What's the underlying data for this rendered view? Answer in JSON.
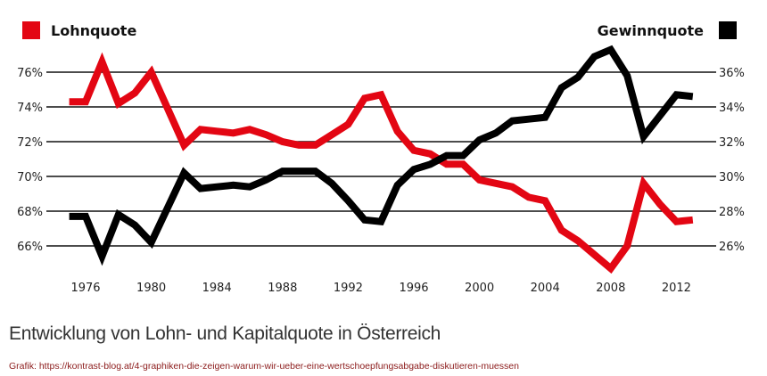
{
  "legend": {
    "left": {
      "label": "Lohnquote",
      "color": "#e30613"
    },
    "right": {
      "label": "Gewinnquote",
      "color": "#000000"
    }
  },
  "caption": "Entwicklung von Lohn- und Kapitalquote in Österreich",
  "credit": "Grafik: https://kontrast-blog.at/4-graphiken-die-zeigen-warum-wir-ueber-eine-wertschoepfungsabgabe-diskutieren-muessen",
  "chart_data": {
    "type": "line",
    "title": "Entwicklung von Lohn- und Kapitalquote in Österreich",
    "xlabel": "",
    "ylabel_left": "Lohnquote",
    "ylabel_right": "Gewinnquote",
    "x": [
      1975,
      1976,
      1977,
      1978,
      1979,
      1980,
      1981,
      1982,
      1983,
      1984,
      1985,
      1986,
      1987,
      1988,
      1989,
      1990,
      1991,
      1992,
      1993,
      1994,
      1995,
      1996,
      1997,
      1998,
      1999,
      2000,
      2001,
      2002,
      2003,
      2004,
      2005,
      2006,
      2007,
      2008,
      2009,
      2010,
      2011,
      2012,
      2013
    ],
    "x_ticks": [
      1976,
      1980,
      1984,
      1988,
      1992,
      1996,
      2000,
      2004,
      2008,
      2012
    ],
    "y_left_ticks": [
      "76%",
      "74%",
      "72%",
      "70%",
      "68%",
      "66%"
    ],
    "y_right_ticks": [
      "36%",
      "34%",
      "32%",
      "30%",
      "28%",
      "26%"
    ],
    "ylim_left": [
      64,
      77.5
    ],
    "ylim_right": [
      24,
      37.5
    ],
    "grid": true,
    "legend_position": "top",
    "series": [
      {
        "name": "Lohnquote",
        "axis": "left",
        "color": "#e30613",
        "values": [
          74.3,
          74.3,
          76.6,
          74.2,
          74.8,
          76.0,
          73.9,
          71.8,
          72.7,
          72.6,
          72.5,
          72.7,
          72.4,
          72.0,
          71.8,
          71.8,
          72.4,
          73.0,
          74.5,
          74.7,
          72.6,
          71.5,
          71.3,
          70.7,
          70.7,
          69.8,
          69.6,
          69.4,
          68.8,
          68.6,
          66.9,
          66.3,
          65.5,
          64.7,
          66.0,
          69.6,
          68.4,
          67.4,
          67.5
        ]
      },
      {
        "name": "Gewinnquote",
        "axis": "right",
        "color": "#000000",
        "values": [
          27.7,
          27.7,
          25.4,
          27.8,
          27.2,
          26.2,
          28.2,
          30.2,
          29.3,
          29.4,
          29.5,
          29.4,
          29.8,
          30.3,
          30.3,
          30.3,
          29.6,
          28.6,
          27.5,
          27.4,
          29.5,
          30.4,
          30.7,
          31.2,
          31.2,
          32.1,
          32.5,
          33.2,
          33.3,
          33.4,
          35.1,
          35.7,
          36.9,
          37.3,
          35.8,
          32.3,
          33.5,
          34.7,
          34.6
        ]
      }
    ]
  }
}
